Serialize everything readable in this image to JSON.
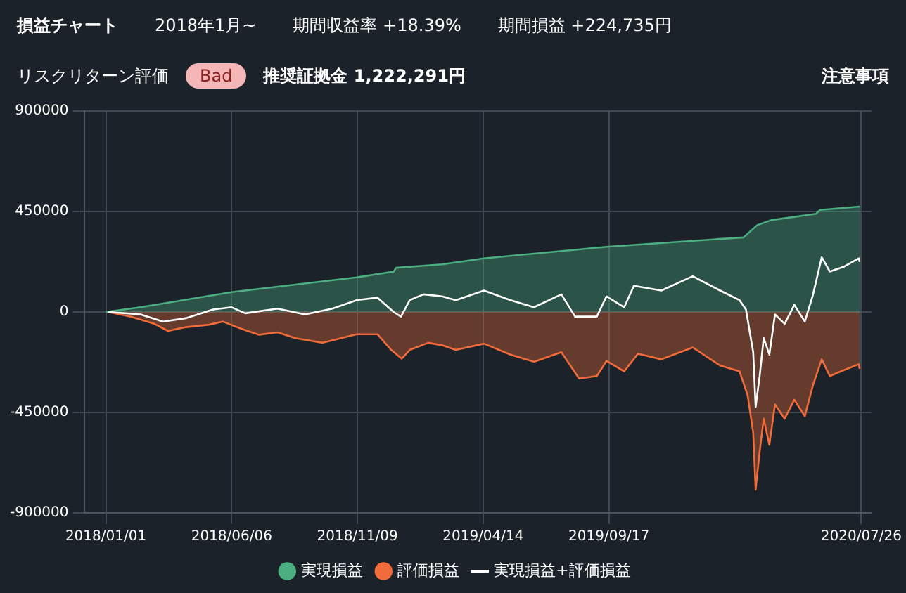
{
  "chart_data": {
    "type": "area",
    "title": "損益チャート",
    "annotations": [
      "2018年1月~",
      "期間収益率 +18.39%",
      "期間損益 +224,735円",
      "リスクリターン評価",
      "Bad",
      "推奨証拠金 1,222,291円",
      "注意事項"
    ],
    "xlim": [
      "2017-12-05",
      "2020-08-08"
    ],
    "xticks": [
      {
        "value": "2018-01-01",
        "label": "2018/01/01"
      },
      {
        "value": "2018-06-06",
        "label": "2018/06/06"
      },
      {
        "value": "2018-11-09",
        "label": "2018/11/09"
      },
      {
        "value": "2019-04-14",
        "label": "2019/04/14"
      },
      {
        "value": "2019-09-17",
        "label": "2019/09/17"
      },
      {
        "value": "2020-07-26",
        "label": "2020/07/26"
      }
    ],
    "ylim": [
      -900000,
      900000
    ],
    "yticks": [
      900000,
      450000,
      0,
      -450000,
      -900000
    ],
    "grid": true,
    "legend": "bottom",
    "series": [
      {
        "name": "実現損益",
        "color": "#4caf82",
        "x": [
          "2018-01-01",
          "2018-02-13",
          "2018-06-06",
          "2018-11-08",
          "2018-12-24",
          "2018-12-27",
          "2019-02-22",
          "2019-04-15",
          "2019-09-14",
          "2020-03-02",
          "2020-03-19",
          "2020-04-05",
          "2020-05-31",
          "2020-06-05",
          "2020-07-24"
        ],
        "values": [
          0,
          21000,
          89000,
          155000,
          181000,
          198000,
          213000,
          240000,
          292000,
          334000,
          389000,
          411000,
          440000,
          457000,
          472000
        ]
      },
      {
        "name": "評価損益",
        "color": "#f26b3a",
        "x": [
          "2018-01-04",
          "2018-02-01",
          "2018-03-02",
          "2018-03-19",
          "2018-04-10",
          "2018-05-09",
          "2018-05-26",
          "2018-06-17",
          "2018-07-10",
          "2018-08-02",
          "2018-08-24",
          "2018-09-27",
          "2018-10-20",
          "2018-11-08",
          "2018-12-04",
          "2018-12-21",
          "2019-01-03",
          "2019-01-13",
          "2019-02-05",
          "2019-02-22",
          "2019-03-11",
          "2019-04-15",
          "2019-05-18",
          "2019-06-16",
          "2019-07-20",
          "2019-08-11",
          "2019-09-02",
          "2019-09-14",
          "2019-10-06",
          "2019-10-23",
          "2019-11-21",
          "2019-12-30",
          "2020-02-02",
          "2020-02-26",
          "2020-03-07",
          "2020-03-14",
          "2020-03-17",
          "2020-03-22",
          "2020-03-27",
          "2020-04-03",
          "2020-04-10",
          "2020-04-22",
          "2020-05-04",
          "2020-05-17",
          "2020-05-27",
          "2020-06-07",
          "2020-06-17",
          "2020-07-04",
          "2020-07-23",
          "2020-07-24"
        ],
        "values": [
          0,
          -21000,
          -53000,
          -85000,
          -68000,
          -57000,
          -43000,
          -74000,
          -102000,
          -91000,
          -117000,
          -138000,
          -117000,
          -100000,
          -100000,
          -170000,
          -209000,
          -170000,
          -138000,
          -149000,
          -170000,
          -142000,
          -191000,
          -223000,
          -180000,
          -298000,
          -287000,
          -219000,
          -266000,
          -187000,
          -212000,
          -159000,
          -240000,
          -266000,
          -372000,
          -541000,
          -796000,
          -626000,
          -478000,
          -595000,
          -414000,
          -478000,
          -393000,
          -467000,
          -329000,
          -212000,
          -287000,
          -261000,
          -234000,
          -255000
        ]
      },
      {
        "name": "実現損益+評価損益",
        "type": "line",
        "color": "#ffffff",
        "x": [
          "2018-01-04",
          "2018-02-13",
          "2018-03-13",
          "2018-04-10",
          "2018-05-14",
          "2018-06-06",
          "2018-06-23",
          "2018-08-02",
          "2018-09-05",
          "2018-10-09",
          "2018-11-08",
          "2018-12-04",
          "2018-12-24",
          "2019-01-02",
          "2019-01-13",
          "2019-01-30",
          "2019-02-22",
          "2019-03-11",
          "2019-04-15",
          "2019-05-18",
          "2019-06-16",
          "2019-07-20",
          "2019-08-06",
          "2019-09-02",
          "2019-09-14",
          "2019-10-06",
          "2019-10-18",
          "2019-11-21",
          "2019-12-30",
          "2020-02-02",
          "2020-02-26",
          "2020-03-05",
          "2020-03-14",
          "2020-03-17",
          "2020-03-22",
          "2020-03-27",
          "2020-04-03",
          "2020-04-10",
          "2020-04-22",
          "2020-05-04",
          "2020-05-17",
          "2020-05-27",
          "2020-06-07",
          "2020-06-17",
          "2020-07-04",
          "2020-07-23",
          "2020-07-24"
        ],
        "values": [
          0,
          -11000,
          -43000,
          -28000,
          11000,
          21000,
          -6000,
          15000,
          -11000,
          15000,
          53000,
          64000,
          0,
          -21000,
          53000,
          79000,
          70000,
          53000,
          96000,
          53000,
          21000,
          79000,
          -21000,
          -21000,
          70000,
          21000,
          117000,
          96000,
          160000,
          96000,
          53000,
          11000,
          -181000,
          -426000,
          -287000,
          -117000,
          -191000,
          -11000,
          -53000,
          32000,
          -43000,
          75000,
          245000,
          181000,
          202000,
          240000,
          224000
        ]
      }
    ]
  }
}
